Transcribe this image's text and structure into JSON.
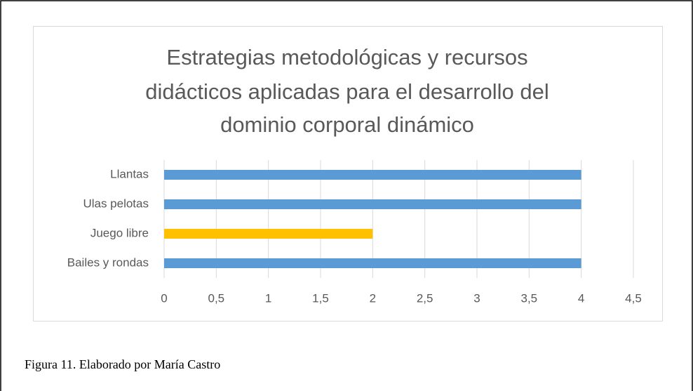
{
  "chart_data": {
    "type": "bar",
    "orientation": "horizontal",
    "title": [
      "Estrategias metodológicas y recursos",
      "didácticos aplicadas para el desarrollo del",
      "dominio corporal dinámico"
    ],
    "categories": [
      "Llantas",
      "Ulas pelotas",
      "Juego libre",
      "Bailes y rondas"
    ],
    "values": [
      4,
      4,
      2,
      4
    ],
    "colors": [
      "#5b9bd5",
      "#5b9bd5",
      "#ffc000",
      "#5b9bd5"
    ],
    "xlim": [
      0,
      4.5
    ],
    "xticks": [
      0,
      {
        "value": 0.5,
        "label": "0,5"
      },
      1,
      {
        "value": 1.5,
        "label": "1,5"
      },
      2,
      {
        "value": 2.5,
        "label": "2,5"
      },
      3,
      {
        "value": 3.5,
        "label": "3,5"
      },
      4,
      {
        "value": 4.5,
        "label": "4,5"
      }
    ],
    "grid": true
  },
  "caption": "Figura 11. Elaborado por María Castro"
}
